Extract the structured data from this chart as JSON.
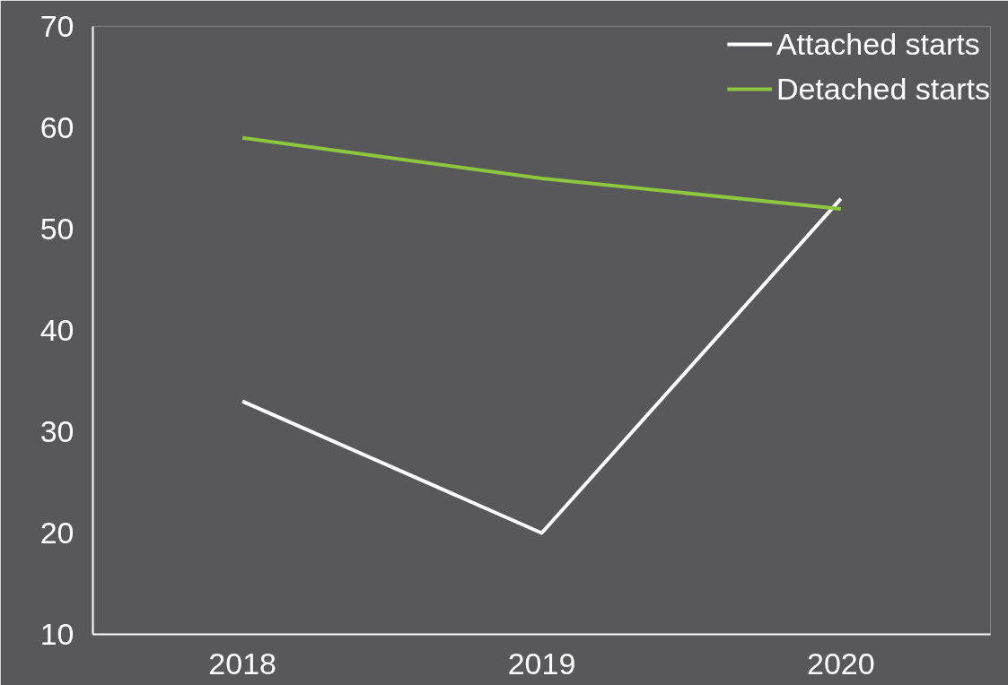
{
  "chart_data": {
    "type": "line",
    "categories": [
      "2018",
      "2019",
      "2020"
    ],
    "series": [
      {
        "name": "Attached starts",
        "color": "#ffffff",
        "values": [
          33,
          20,
          53
        ]
      },
      {
        "name": "Detached starts",
        "color": "#8dc63f",
        "values": [
          59,
          55,
          52
        ]
      }
    ],
    "ylim": [
      10,
      70
    ],
    "yticks": [
      10,
      20,
      30,
      40,
      50,
      60,
      70
    ],
    "grid": false,
    "legend": "top right",
    "marker": "none",
    "line_style": "solid"
  }
}
